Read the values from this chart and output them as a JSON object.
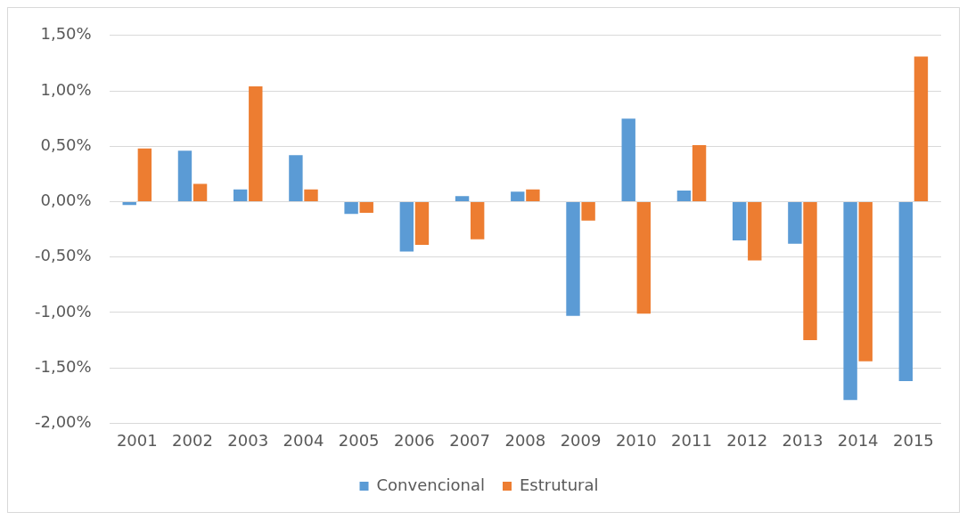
{
  "chart_data": {
    "type": "bar",
    "categories": [
      "2001",
      "2002",
      "2003",
      "2004",
      "2005",
      "2006",
      "2007",
      "2008",
      "2009",
      "2010",
      "2011",
      "2012",
      "2013",
      "2014",
      "2015"
    ],
    "series": [
      {
        "name": "Convencional",
        "color": "#5b9bd5",
        "values": [
          -0.03,
          0.46,
          0.11,
          0.42,
          -0.11,
          -0.45,
          0.05,
          0.09,
          -1.03,
          0.75,
          0.1,
          -0.35,
          -0.38,
          -1.79,
          -1.62
        ]
      },
      {
        "name": "Estrutural",
        "color": "#ed7d31",
        "values": [
          0.48,
          0.16,
          1.04,
          0.11,
          -0.1,
          -0.39,
          -0.34,
          0.11,
          -0.17,
          -1.01,
          0.51,
          -0.53,
          -1.25,
          -1.44,
          1.31
        ]
      }
    ],
    "ylim": [
      -2,
      1.5
    ],
    "yticks": [
      {
        "value": -2,
        "label": "-2,00%"
      },
      {
        "value": -1.5,
        "label": "-1,50%"
      },
      {
        "value": -1,
        "label": "-1,00%"
      },
      {
        "value": -0.5,
        "label": "-0,50%"
      },
      {
        "value": 0,
        "label": "0,00%"
      },
      {
        "value": 0.5,
        "label": "0,50%"
      },
      {
        "value": 1,
        "label": "1,00%"
      },
      {
        "value": 1.5,
        "label": "1,50%"
      }
    ],
    "grid": "y",
    "legend": "bottom"
  }
}
